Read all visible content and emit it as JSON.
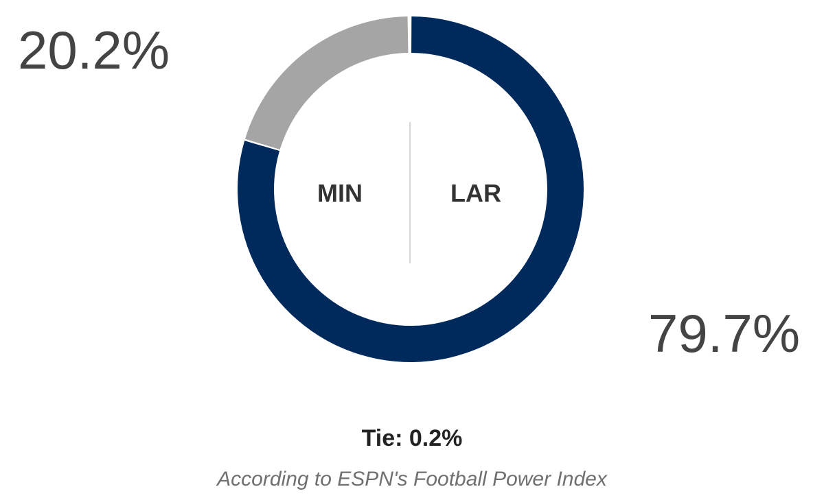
{
  "chart_data": {
    "type": "pie",
    "style": "donut",
    "categories": [
      "LAR",
      "MIN",
      "Tie"
    ],
    "values": [
      79.7,
      20.2,
      0.2
    ],
    "colors": [
      "#002a5c",
      "#a5a5a5",
      "#ffffff"
    ],
    "labels": {
      "home_team": "LAR",
      "away_team": "MIN",
      "home_pct": "79.7%",
      "away_pct": "20.2%"
    },
    "tie": "Tie: 0.2%",
    "source": "According to ESPN's Football Power Index"
  }
}
